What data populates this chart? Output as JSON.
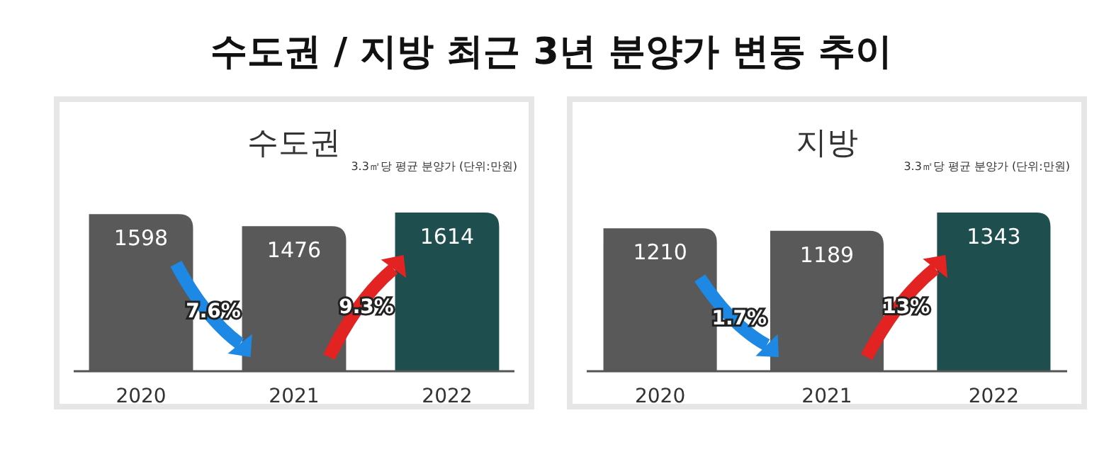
{
  "chart_data": [
    {
      "type": "bar",
      "title": "수도권 / 지방 최근 3년 분양가 변동 추이",
      "subtitle": "수도권",
      "categories": [
        "2020",
        "2021",
        "2022"
      ],
      "values": [
        1598,
        1476,
        1614
      ],
      "colors": [
        "#595959",
        "#595959",
        "#1f4e4f"
      ],
      "data_labels": true,
      "annotations": [
        "3.3㎡당 평균 분양가 (단위:만원)",
        "7.6%",
        "9.3%"
      ]
    },
    {
      "type": "bar",
      "title": "지방",
      "categories": [
        "2020",
        "2021",
        "2022"
      ],
      "values": [
        1210,
        1189,
        1343
      ],
      "colors": [
        "#595959",
        "#595959",
        "#1f4e4f"
      ],
      "data_labels": true,
      "annotations": [
        "3.3㎡당 평균 분양가 (단위:만원)",
        "1.7%",
        "13%"
      ]
    }
  ]
}
